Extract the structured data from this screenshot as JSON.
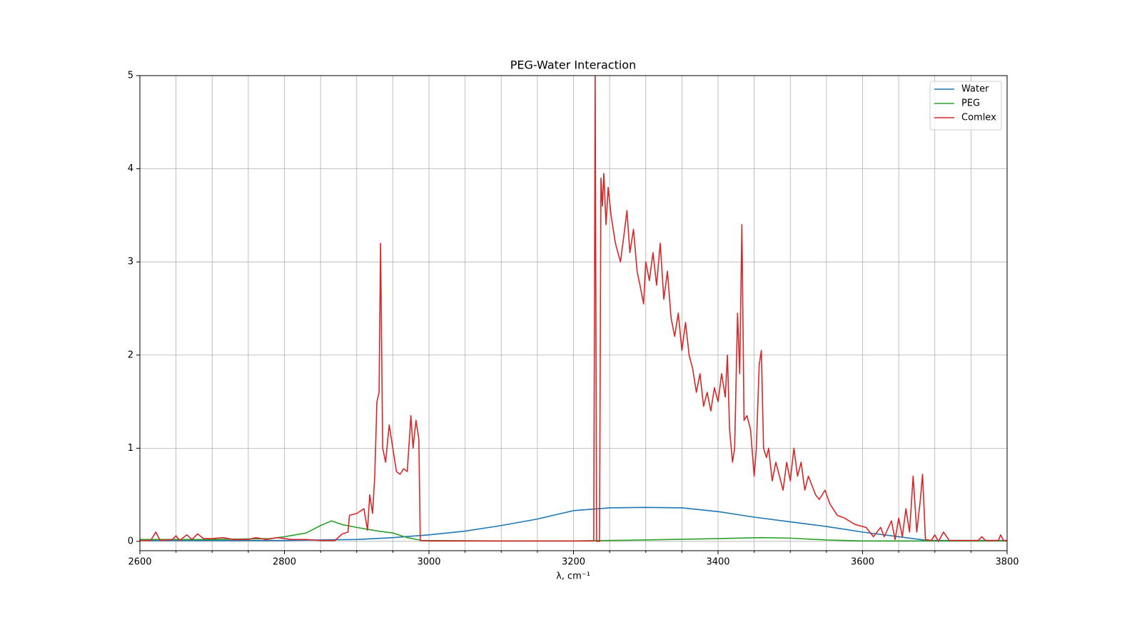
{
  "chart_data": {
    "type": "line",
    "title": "PEG-Water Interaction",
    "xlabel": "λ, cm⁻¹",
    "xlim": [
      2600,
      3800
    ],
    "ylim": [
      -0.1,
      5
    ],
    "xticks": [
      2600,
      2800,
      3000,
      3200,
      3400,
      3600,
      3800
    ],
    "xminorticks": [
      2650,
      2700,
      2750,
      2850,
      2900,
      2950,
      3050,
      3100,
      3150,
      3250,
      3300,
      3350,
      3450,
      3500,
      3550,
      3650,
      3700,
      3750
    ],
    "yticks": [
      0,
      1,
      2,
      3,
      4,
      5
    ],
    "grid": true,
    "legend": "upper right",
    "series": [
      {
        "name": "Water",
        "color": "#1f77b4",
        "x": [
          2600,
          2700,
          2800,
          2850,
          2900,
          2950,
          3000,
          3050,
          3100,
          3150,
          3200,
          3250,
          3300,
          3350,
          3400,
          3450,
          3500,
          3550,
          3600,
          3650,
          3690,
          3750,
          3800
        ],
        "values": [
          0.01,
          0.01,
          0.01,
          0.015,
          0.02,
          0.04,
          0.07,
          0.11,
          0.17,
          0.24,
          0.33,
          0.36,
          0.365,
          0.36,
          0.32,
          0.26,
          0.21,
          0.16,
          0.1,
          0.05,
          0.01,
          0.01,
          0.01
        ]
      },
      {
        "name": "PEG",
        "color": "#2ca02c",
        "x": [
          2600,
          2700,
          2780,
          2800,
          2830,
          2850,
          2865,
          2880,
          2900,
          2930,
          2950,
          2970,
          2990,
          3100,
          3200,
          3300,
          3400,
          3460,
          3500,
          3550,
          3600,
          3700,
          3800
        ],
        "values": [
          0.02,
          0.02,
          0.03,
          0.05,
          0.09,
          0.17,
          0.22,
          0.18,
          0.15,
          0.11,
          0.09,
          0.04,
          0.01,
          0.005,
          0.005,
          0.015,
          0.03,
          0.04,
          0.035,
          0.015,
          0.005,
          0.005,
          0.005
        ]
      },
      {
        "name": "Comlex",
        "color": "#d62728",
        "x": [
          2600,
          2615,
          2622,
          2628,
          2645,
          2650,
          2655,
          2665,
          2672,
          2680,
          2688,
          2700,
          2715,
          2730,
          2750,
          2760,
          2775,
          2790,
          2810,
          2830,
          2850,
          2870,
          2880,
          2888,
          2890,
          2900,
          2910,
          2915,
          2918,
          2922,
          2925,
          2928,
          2931,
          2933,
          2936,
          2940,
          2945,
          2950,
          2955,
          2960,
          2965,
          2970,
          2975,
          2978,
          2982,
          2986,
          2988,
          3000,
          3100,
          3228,
          3230,
          3232,
          3236,
          3238,
          3240,
          3242,
          3245,
          3248,
          3252,
          3258,
          3265,
          3270,
          3274,
          3278,
          3283,
          3288,
          3292,
          3297,
          3300,
          3305,
          3310,
          3315,
          3320,
          3325,
          3330,
          3335,
          3340,
          3345,
          3350,
          3355,
          3360,
          3365,
          3370,
          3375,
          3380,
          3385,
          3390,
          3395,
          3400,
          3405,
          3410,
          3413,
          3416,
          3420,
          3423,
          3427,
          3430,
          3433,
          3436,
          3440,
          3445,
          3450,
          3453,
          3457,
          3460,
          3463,
          3467,
          3470,
          3475,
          3480,
          3485,
          3490,
          3495,
          3500,
          3505,
          3510,
          3515,
          3520,
          3525,
          3530,
          3535,
          3540,
          3548,
          3555,
          3565,
          3575,
          3590,
          3605,
          3615,
          3625,
          3630,
          3640,
          3645,
          3650,
          3655,
          3660,
          3665,
          3670,
          3675,
          3680,
          3683,
          3687,
          3695,
          3700,
          3705,
          3712,
          3720,
          3760,
          3765,
          3770,
          3788,
          3791,
          3795,
          3800
        ],
        "values": [
          0.01,
          0.01,
          0.1,
          0.01,
          0.02,
          0.06,
          0.01,
          0.07,
          0.02,
          0.08,
          0.03,
          0.03,
          0.04,
          0.02,
          0.02,
          0.04,
          0.02,
          0.04,
          0.02,
          0.02,
          0.01,
          0.01,
          0.08,
          0.1,
          0.28,
          0.3,
          0.35,
          0.12,
          0.5,
          0.3,
          0.7,
          1.5,
          1.6,
          3.2,
          1.0,
          0.85,
          1.25,
          1.0,
          0.75,
          0.72,
          0.78,
          0.75,
          1.35,
          1.0,
          1.3,
          1.1,
          0.01,
          0.005,
          0.005,
          0.005,
          5,
          0,
          0,
          3.9,
          3.6,
          3.95,
          3.4,
          3.8,
          3.5,
          3.2,
          3.0,
          3.3,
          3.55,
          3.1,
          3.35,
          2.9,
          2.75,
          2.55,
          3.0,
          2.8,
          3.1,
          2.75,
          3.2,
          2.6,
          2.9,
          2.4,
          2.2,
          2.45,
          2.05,
          2.35,
          2.0,
          1.85,
          1.6,
          1.8,
          1.45,
          1.6,
          1.4,
          1.65,
          1.5,
          1.8,
          1.55,
          2.0,
          1.2,
          0.85,
          1.0,
          2.45,
          1.8,
          3.4,
          1.3,
          1.35,
          1.2,
          0.7,
          1.0,
          1.9,
          2.05,
          1.0,
          0.9,
          1.0,
          0.65,
          0.85,
          0.7,
          0.55,
          0.85,
          0.65,
          1.0,
          0.7,
          0.85,
          0.55,
          0.7,
          0.6,
          0.5,
          0.45,
          0.55,
          0.4,
          0.28,
          0.25,
          0.18,
          0.15,
          0.05,
          0.15,
          0.05,
          0.22,
          0.02,
          0.25,
          0.05,
          0.35,
          0.1,
          0.7,
          0.1,
          0.45,
          0.72,
          0.02,
          0.01,
          0.07,
          0.0,
          0.1,
          0.01,
          0.01,
          0.05,
          0.01,
          0.01,
          0.07,
          0.01,
          0.01
        ]
      }
    ]
  }
}
